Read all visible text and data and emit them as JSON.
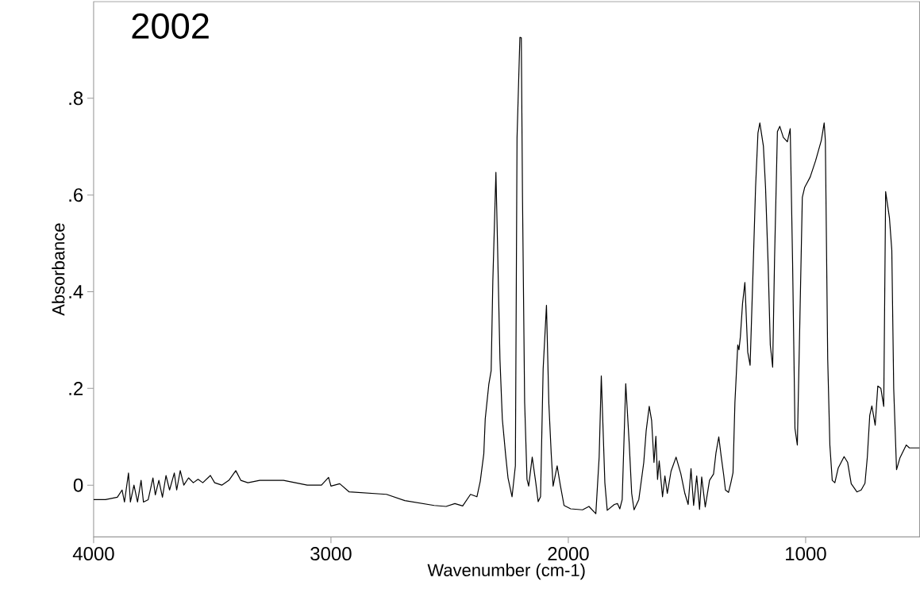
{
  "chart_data": {
    "type": "line",
    "title": "2002",
    "xlabel": "Wavenumber (cm-1)",
    "ylabel": "Absorbance",
    "color": "#000000",
    "xlim": [
      4000,
      520
    ],
    "ylim": [
      -0.107,
      1.0
    ],
    "xticks": [
      4000,
      3000,
      2000,
      1000
    ],
    "yticks": [
      0,
      {
        "value": 0.2,
        "label": ".2"
      },
      {
        "value": 0.4,
        "label": ".4"
      },
      {
        "value": 0.6,
        "label": ".6"
      },
      {
        "value": 0.8,
        "label": ".8"
      }
    ],
    "x": [
      4000,
      3950,
      3900,
      3880,
      3870,
      3853,
      3845,
      3830,
      3815,
      3800,
      3790,
      3770,
      3750,
      3740,
      3725,
      3710,
      3695,
      3680,
      3660,
      3650,
      3635,
      3620,
      3600,
      3580,
      3560,
      3540,
      3508,
      3490,
      3460,
      3430,
      3401,
      3380,
      3350,
      3300,
      3200,
      3100,
      3040,
      3010,
      3000,
      2963,
      2923,
      2766,
      2689,
      2565,
      2515,
      2478,
      2445,
      2412,
      2385,
      2371,
      2356,
      2350,
      2335,
      2325,
      2318,
      2305,
      2298,
      2288,
      2278,
      2264,
      2254,
      2237,
      2223,
      2216,
      2204,
      2198,
      2193,
      2184,
      2174,
      2167,
      2159,
      2152,
      2137,
      2127,
      2117,
      2106,
      2092,
      2082,
      2072,
      2064,
      2047,
      2034,
      2018,
      1990,
      1940,
      1913,
      1884,
      1870,
      1861,
      1846,
      1836,
      1806,
      1793,
      1783,
      1773,
      1758,
      1743,
      1733,
      1723,
      1703,
      1682,
      1672,
      1659,
      1649,
      1639,
      1631,
      1624,
      1617,
      1603,
      1593,
      1583,
      1567,
      1546,
      1526,
      1509,
      1495,
      1483,
      1472,
      1459,
      1447,
      1438,
      1423,
      1405,
      1388,
      1378,
      1366,
      1356,
      1345,
      1338,
      1325,
      1315,
      1306,
      1298,
      1286,
      1281,
      1275,
      1266,
      1256,
      1244,
      1234,
      1222,
      1211,
      1201,
      1193,
      1178,
      1169,
      1158,
      1149,
      1139,
      1131,
      1119,
      1109,
      1094,
      1077,
      1065,
      1055,
      1045,
      1035,
      1024,
      1014,
      1004,
      981,
      958,
      934,
      922,
      917,
      907,
      898,
      888,
      877,
      863,
      838,
      823,
      808,
      784,
      766,
      750,
      740,
      730,
      721,
      707,
      696,
      683,
      671,
      663,
      647,
      637,
      629,
      617,
      603,
      576,
      563,
      520
    ],
    "values": [
      -0.03,
      -0.03,
      -0.025,
      -0.01,
      -0.035,
      0.025,
      -0.035,
      0.0,
      -0.035,
      0.01,
      -0.035,
      -0.03,
      0.015,
      -0.02,
      0.01,
      -0.025,
      0.02,
      -0.01,
      0.025,
      -0.01,
      0.03,
      0.0,
      0.015,
      0.005,
      0.012,
      0.005,
      0.02,
      0.005,
      0.0,
      0.01,
      0.03,
      0.01,
      0.005,
      0.01,
      0.01,
      0.0,
      0.0,
      0.016,
      -0.002,
      0.003,
      -0.014,
      -0.019,
      -0.032,
      -0.042,
      -0.044,
      -0.038,
      -0.043,
      -0.019,
      -0.024,
      0.008,
      0.065,
      0.137,
      0.208,
      0.237,
      0.422,
      0.647,
      0.493,
      0.261,
      0.137,
      0.062,
      0.015,
      -0.024,
      0.04,
      0.718,
      0.926,
      0.925,
      0.597,
      0.172,
      0.012,
      -0.002,
      0.03,
      0.058,
      0.005,
      -0.034,
      -0.024,
      0.24,
      0.372,
      0.169,
      0.065,
      -0.002,
      0.04,
      0.001,
      -0.042,
      -0.049,
      -0.051,
      -0.044,
      -0.059,
      0.058,
      0.226,
      0.005,
      -0.052,
      -0.04,
      -0.038,
      -0.049,
      -0.03,
      0.21,
      0.083,
      -0.017,
      -0.051,
      -0.03,
      0.047,
      0.112,
      0.163,
      0.134,
      0.047,
      0.101,
      0.012,
      0.05,
      -0.024,
      0.019,
      -0.017,
      0.029,
      0.058,
      0.024,
      -0.017,
      -0.04,
      0.034,
      -0.042,
      0.019,
      -0.05,
      0.017,
      -0.045,
      0.01,
      0.023,
      0.066,
      0.1,
      0.06,
      0.02,
      -0.01,
      -0.015,
      0.005,
      0.026,
      0.171,
      0.29,
      0.28,
      0.307,
      0.375,
      0.419,
      0.275,
      0.248,
      0.437,
      0.616,
      0.728,
      0.749,
      0.701,
      0.616,
      0.456,
      0.29,
      0.244,
      0.468,
      0.731,
      0.742,
      0.719,
      0.71,
      0.737,
      0.46,
      0.117,
      0.083,
      0.349,
      0.595,
      0.616,
      0.637,
      0.671,
      0.713,
      0.749,
      0.713,
      0.26,
      0.083,
      0.01,
      0.005,
      0.035,
      0.059,
      0.047,
      0.003,
      -0.014,
      -0.01,
      0.004,
      0.059,
      0.144,
      0.164,
      0.124,
      0.205,
      0.2,
      0.163,
      0.607,
      0.553,
      0.486,
      0.2,
      0.032,
      0.056,
      0.083,
      0.077,
      0.077
    ]
  }
}
